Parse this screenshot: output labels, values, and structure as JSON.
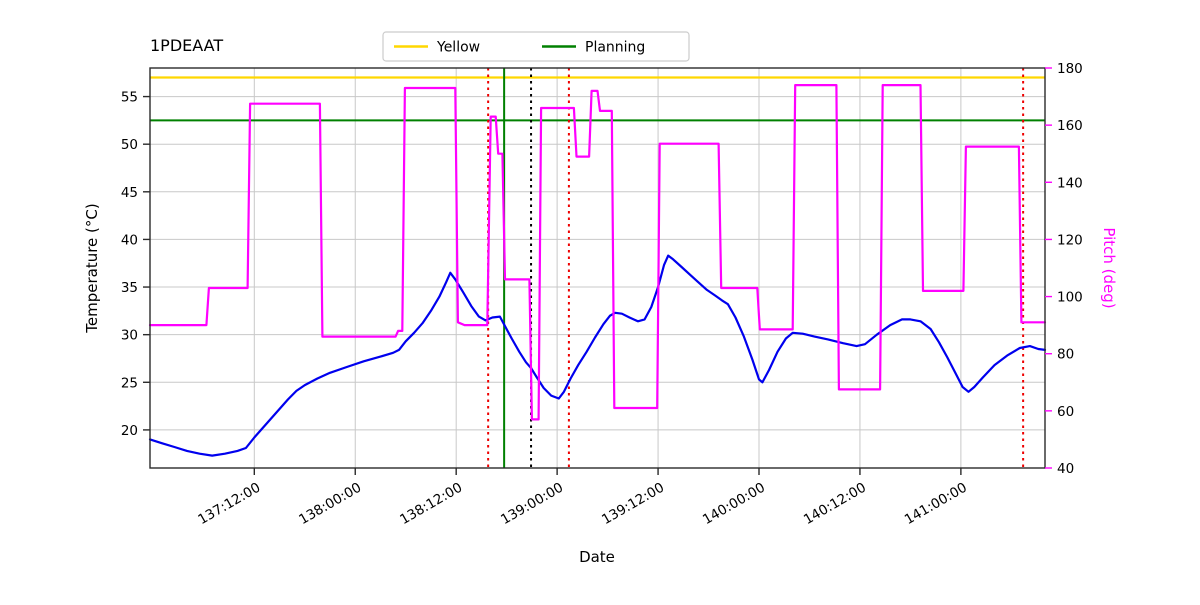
{
  "title": "1PDEAAT",
  "axes": {
    "xlabel": "Date",
    "ylabel_left": "Temperature (°C)",
    "ylabel_right": "Pitch (deg)"
  },
  "legend": [
    {
      "label": "Yellow",
      "color": "#FFD700"
    },
    {
      "label": "Planning",
      "color": "#008000"
    }
  ],
  "colors": {
    "temperature_line": "#0000EE",
    "pitch_line": "#FF00FF",
    "yellow_limit": "#FFD700",
    "planning_limit": "#008000",
    "red_marker": "#EE0000",
    "black_marker": "#000000",
    "grid": "#c8c8c8",
    "spine": "#2a2a2a"
  },
  "chart_data": {
    "type": "line",
    "title": "1PDEAAT",
    "xlabel": "Date",
    "grid": true,
    "legend_position": "top center",
    "x_unit": "hours since day 137 00:00:00",
    "x_range": [
      -0.4,
      106.0
    ],
    "x_ticks": [
      {
        "value": 12,
        "label": "137:12:00"
      },
      {
        "value": 24,
        "label": "138:00:00"
      },
      {
        "value": 36,
        "label": "138:12:00"
      },
      {
        "value": 48,
        "label": "139:00:00"
      },
      {
        "value": 60,
        "label": "139:12:00"
      },
      {
        "value": 72,
        "label": "140:00:00"
      },
      {
        "value": 84,
        "label": "140:12:00"
      },
      {
        "value": 96,
        "label": "141:00:00"
      }
    ],
    "y_left": {
      "label": "Temperature (°C)",
      "range": [
        16,
        58
      ],
      "ticks": [
        20,
        25,
        30,
        35,
        40,
        45,
        50,
        55
      ]
    },
    "y_right": {
      "label": "Pitch (deg)",
      "range": [
        40,
        180
      ],
      "ticks": [
        40,
        60,
        80,
        100,
        120,
        140,
        160,
        180
      ],
      "color": "#FF00FF"
    },
    "h_lines": [
      {
        "name": "yellow-limit",
        "y": 57.0,
        "color": "#FFD700",
        "width": 2.2
      },
      {
        "name": "planning-limit",
        "y": 52.5,
        "color": "#008000",
        "width": 2
      }
    ],
    "v_lines": [
      {
        "name": "red-dotted-1",
        "x": 39.8,
        "color": "#EE0000",
        "dash": "dotted"
      },
      {
        "name": "green-solid",
        "x": 41.7,
        "color": "#008000",
        "dash": "solid"
      },
      {
        "name": "black-dotted",
        "x": 44.9,
        "color": "#000000",
        "dash": "dotted"
      },
      {
        "name": "red-dotted-2",
        "x": 49.4,
        "color": "#EE0000",
        "dash": "dotted"
      },
      {
        "name": "red-dotted-3",
        "x": 103.4,
        "color": "#EE0000",
        "dash": "dotted"
      }
    ],
    "series": [
      {
        "name": "temperature",
        "axis": "left",
        "color": "#0000EE",
        "width": 2.2,
        "points": [
          [
            -0.4,
            19.0
          ],
          [
            1,
            18.6
          ],
          [
            2.5,
            18.2
          ],
          [
            4,
            17.8
          ],
          [
            5.5,
            17.5
          ],
          [
            7,
            17.3
          ],
          [
            8.5,
            17.5
          ],
          [
            10,
            17.8
          ],
          [
            11,
            18.1
          ],
          [
            12,
            19.2
          ],
          [
            13,
            20.2
          ],
          [
            14,
            21.2
          ],
          [
            15,
            22.2
          ],
          [
            16,
            23.2
          ],
          [
            17,
            24.1
          ],
          [
            18,
            24.7
          ],
          [
            19.5,
            25.4
          ],
          [
            21,
            26.0
          ],
          [
            23,
            26.6
          ],
          [
            25,
            27.2
          ],
          [
            27,
            27.7
          ],
          [
            28.5,
            28.1
          ],
          [
            29.2,
            28.4
          ],
          [
            30,
            29.3
          ],
          [
            31,
            30.2
          ],
          [
            32,
            31.2
          ],
          [
            33,
            32.5
          ],
          [
            34,
            34.0
          ],
          [
            34.8,
            35.5
          ],
          [
            35.3,
            36.5
          ],
          [
            35.9,
            35.8
          ],
          [
            36.8,
            34.5
          ],
          [
            37.8,
            33.0
          ],
          [
            38.7,
            31.9
          ],
          [
            39.5,
            31.5
          ],
          [
            40.3,
            31.8
          ],
          [
            41.2,
            31.9
          ],
          [
            41.8,
            30.9
          ],
          [
            42.6,
            29.6
          ],
          [
            43.5,
            28.2
          ],
          [
            44.3,
            27.1
          ],
          [
            44.9,
            26.5
          ],
          [
            45.6,
            25.5
          ],
          [
            46.4,
            24.4
          ],
          [
            47.3,
            23.6
          ],
          [
            48.2,
            23.3
          ],
          [
            48.8,
            24.0
          ],
          [
            49.6,
            25.4
          ],
          [
            50.5,
            26.8
          ],
          [
            51.5,
            28.2
          ],
          [
            52.5,
            29.7
          ],
          [
            53.5,
            31.1
          ],
          [
            54.3,
            32.0
          ],
          [
            54.9,
            32.3
          ],
          [
            55.7,
            32.2
          ],
          [
            56.6,
            31.8
          ],
          [
            57.6,
            31.4
          ],
          [
            58.4,
            31.6
          ],
          [
            59.2,
            32.9
          ],
          [
            60.0,
            35.0
          ],
          [
            60.7,
            37.3
          ],
          [
            61.2,
            38.3
          ],
          [
            61.8,
            37.9
          ],
          [
            62.8,
            37.1
          ],
          [
            63.8,
            36.3
          ],
          [
            64.8,
            35.5
          ],
          [
            65.8,
            34.7
          ],
          [
            66.8,
            34.1
          ],
          [
            67.6,
            33.6
          ],
          [
            68.3,
            33.2
          ],
          [
            69.2,
            31.8
          ],
          [
            70.2,
            29.8
          ],
          [
            71.2,
            27.4
          ],
          [
            72.0,
            25.3
          ],
          [
            72.4,
            25.0
          ],
          [
            73.2,
            26.3
          ],
          [
            74.2,
            28.2
          ],
          [
            75.2,
            29.6
          ],
          [
            76.0,
            30.2
          ],
          [
            77.2,
            30.1
          ],
          [
            78.6,
            29.8
          ],
          [
            80.2,
            29.5
          ],
          [
            82,
            29.1
          ],
          [
            83.6,
            28.8
          ],
          [
            84.6,
            29.0
          ],
          [
            86,
            30.0
          ],
          [
            87.6,
            31.0
          ],
          [
            89,
            31.6
          ],
          [
            90,
            31.6
          ],
          [
            91.2,
            31.4
          ],
          [
            92.4,
            30.6
          ],
          [
            93.4,
            29.2
          ],
          [
            94.4,
            27.6
          ],
          [
            95.4,
            25.9
          ],
          [
            96.2,
            24.5
          ],
          [
            96.9,
            24.0
          ],
          [
            97.6,
            24.5
          ],
          [
            98.6,
            25.5
          ],
          [
            100,
            26.8
          ],
          [
            101.5,
            27.8
          ],
          [
            103,
            28.6
          ],
          [
            104.2,
            28.8
          ],
          [
            105.2,
            28.5
          ],
          [
            106,
            28.4
          ]
        ]
      },
      {
        "name": "pitch",
        "axis": "right",
        "color": "#FF00FF",
        "width": 2.2,
        "points": [
          [
            -0.4,
            90
          ],
          [
            6.3,
            90
          ],
          [
            6.6,
            103
          ],
          [
            11.2,
            103
          ],
          [
            11.5,
            167.5
          ],
          [
            19.8,
            167.5
          ],
          [
            20.1,
            86
          ],
          [
            28.8,
            86
          ],
          [
            29.1,
            88
          ],
          [
            29.6,
            88
          ],
          [
            29.9,
            173
          ],
          [
            35.9,
            173
          ],
          [
            36.2,
            91
          ],
          [
            37,
            90
          ],
          [
            39.7,
            90
          ],
          [
            40.1,
            163
          ],
          [
            40.7,
            163
          ],
          [
            41.0,
            150
          ],
          [
            41.5,
            150
          ],
          [
            41.8,
            106
          ],
          [
            44.7,
            106
          ],
          [
            45.0,
            57
          ],
          [
            45.8,
            57
          ],
          [
            46.1,
            166
          ],
          [
            50.0,
            166
          ],
          [
            50.3,
            149
          ],
          [
            51.8,
            149
          ],
          [
            52.1,
            172
          ],
          [
            52.8,
            172
          ],
          [
            53.1,
            165
          ],
          [
            54.5,
            165
          ],
          [
            54.8,
            61
          ],
          [
            59.9,
            61
          ],
          [
            60.2,
            153.5
          ],
          [
            67.2,
            153.5
          ],
          [
            67.5,
            103
          ],
          [
            71.8,
            103
          ],
          [
            72.1,
            88.5
          ],
          [
            76.0,
            88.5
          ],
          [
            76.3,
            174
          ],
          [
            81.2,
            174
          ],
          [
            81.5,
            67.5
          ],
          [
            86.4,
            67.5
          ],
          [
            86.7,
            174
          ],
          [
            91.2,
            174
          ],
          [
            91.5,
            102
          ],
          [
            96.3,
            102
          ],
          [
            96.6,
            152.5
          ],
          [
            102.9,
            152.5
          ],
          [
            103.2,
            91
          ],
          [
            106,
            91
          ]
        ]
      }
    ]
  }
}
